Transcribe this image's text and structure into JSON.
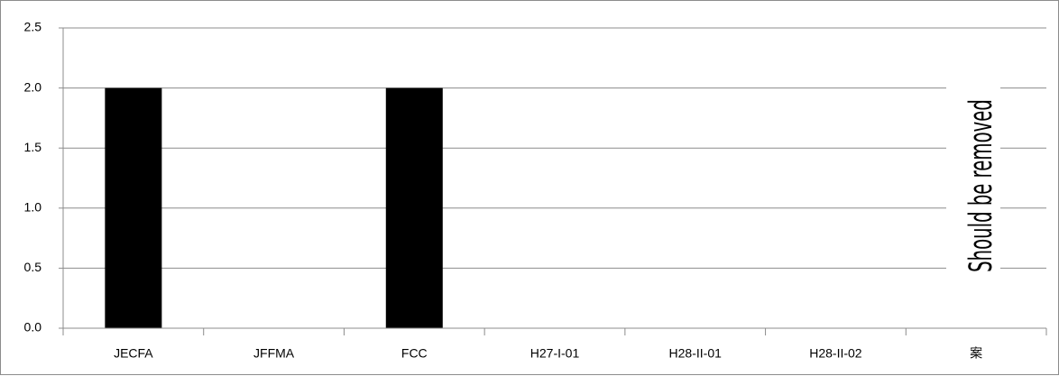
{
  "chart_data": {
    "type": "bar",
    "categories": [
      "JECFA",
      "JFFMA",
      "FCC",
      "H27-I-01",
      "H28-II-01",
      "H28-II-02",
      "案"
    ],
    "values": [
      2.0,
      0,
      2.0,
      0,
      0,
      0,
      0
    ],
    "ylim": [
      0,
      2.5
    ],
    "yticks": [
      "0.0",
      "0.5",
      "1.0",
      "1.5",
      "2.0",
      "2.5"
    ],
    "grid": true,
    "bar_color": "#000000",
    "gridline_color": "#8c8c8c",
    "annotation": "Should be removed"
  }
}
